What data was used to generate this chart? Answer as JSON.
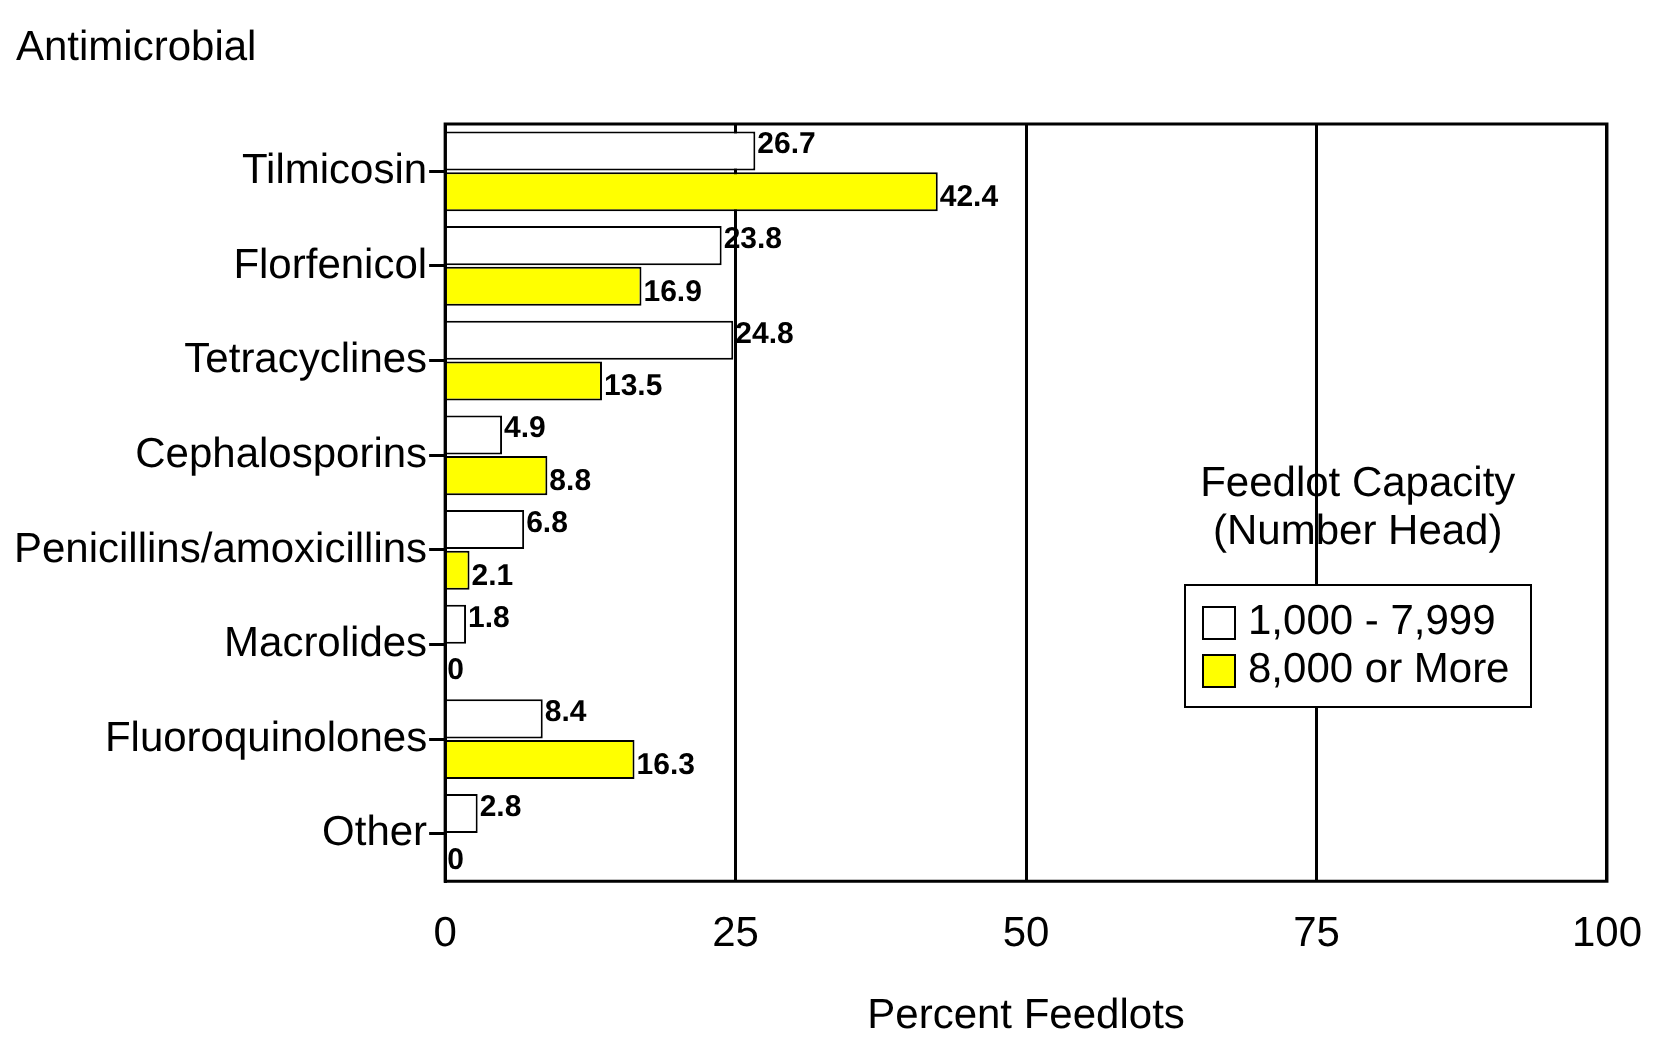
{
  "chart_data": {
    "type": "bar",
    "orientation": "horizontal",
    "ylabel": "Antimicrobial",
    "xlabel": "Percent Feedlots",
    "legend_title": "Feedlot Capacity\n(Number Head)",
    "legend": "right",
    "grid": "x",
    "data_labels": true,
    "categories": [
      "Tilmicosin",
      "Florfenicol",
      "Tetracyclines",
      "Cephalosporins",
      "Penicillins/amoxicillins",
      "Macrolides",
      "Fluoroquinolones",
      "Other"
    ],
    "xlim": [
      0,
      100
    ],
    "xticks": [
      0,
      25,
      50,
      75,
      100
    ],
    "series": [
      {
        "name": "1,000 - 7,999",
        "color": "#ffffff",
        "values": [
          26.7,
          23.8,
          24.8,
          4.9,
          6.8,
          1.8,
          8.4,
          2.8
        ]
      },
      {
        "name": "8,000 or More",
        "color": "#ffff00",
        "values": [
          42.4,
          16.9,
          13.5,
          8.8,
          2.1,
          0,
          16.3,
          0
        ]
      }
    ]
  }
}
